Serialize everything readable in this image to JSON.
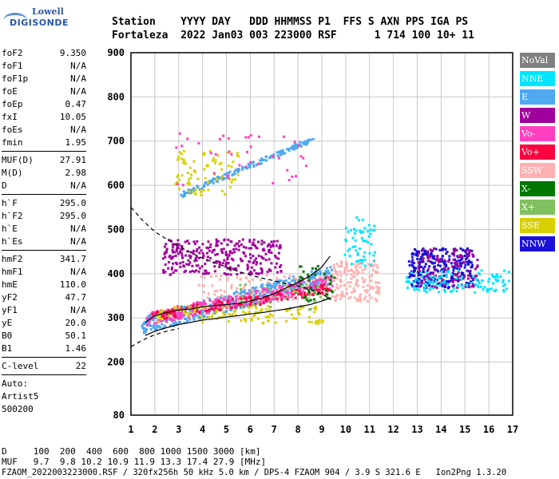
{
  "logo": {
    "line1": "Lowell",
    "line2": "DIGISONDE"
  },
  "header": {
    "line1": "Station    YYYY DAY   DDD HHMMSS P1  FFS S AXN PPS IGA PS",
    "line2": "Fortaleza  2022 Jan03 003 223000 RSF      1 714 100 10+ 11"
  },
  "params": {
    "group1": [
      {
        "k": "foF2",
        "v": "9.350"
      },
      {
        "k": "foF1",
        "v": "N/A"
      },
      {
        "k": "foF1p",
        "v": "N/A"
      },
      {
        "k": "foE",
        "v": "N/A"
      },
      {
        "k": "foEp",
        "v": "0.47"
      },
      {
        "k": "fxI",
        "v": "10.05"
      },
      {
        "k": "foEs",
        "v": "N/A"
      },
      {
        "k": "fmin",
        "v": "1.95"
      }
    ],
    "group2": [
      {
        "k": "MUF(D)",
        "v": "27.91"
      },
      {
        "k": "M(D)",
        "v": "2.98"
      },
      {
        "k": "D",
        "v": "N/A"
      }
    ],
    "group3": [
      {
        "k": "h`F",
        "v": "295.0"
      },
      {
        "k": "h`F2",
        "v": "295.0"
      },
      {
        "k": "h`E",
        "v": "N/A"
      },
      {
        "k": "h`Es",
        "v": "N/A"
      }
    ],
    "group4": [
      {
        "k": "hmF2",
        "v": "341.7"
      },
      {
        "k": "hmF1",
        "v": "N/A"
      },
      {
        "k": "hmE",
        "v": "110.0"
      },
      {
        "k": "yF2",
        "v": "47.7"
      },
      {
        "k": "yF1",
        "v": "N/A"
      },
      {
        "k": "yE",
        "v": "20.0"
      },
      {
        "k": "B0",
        "v": "50.1"
      },
      {
        "k": "B1",
        "v": "1.46"
      }
    ],
    "clevel": {
      "k": "C-level",
      "v": "22"
    },
    "auto": [
      "Auto:",
      "Artist5",
      "500200"
    ]
  },
  "legend": [
    {
      "label": "NoVal",
      "color": "#808080"
    },
    {
      "label": "NNE",
      "color": "#00e5ff"
    },
    {
      "label": "E",
      "color": "#4fa8f0"
    },
    {
      "label": "W",
      "color": "#a0009c"
    },
    {
      "label": "Vo-",
      "color": "#ff40c0"
    },
    {
      "label": "Vo+",
      "color": "#ff0040"
    },
    {
      "label": "SSW",
      "color": "#ffb0b0"
    },
    {
      "label": "X-",
      "color": "#007800"
    },
    {
      "label": "X+",
      "color": "#80c060"
    },
    {
      "label": "SSE",
      "color": "#d8d000"
    },
    {
      "label": "NNW",
      "color": "#1a10d8"
    }
  ],
  "footer": {
    "line1": "D     100  200  400  600  800 1000 1500 3000 [km]",
    "line2": "MUF   9.7  9.8 10.2 10.9 11.9 13.3 17.4 27.9 [MHz]",
    "line3": "FZAOM_2022003223000.RSF / 320fx256h 50 kHz 5.0 km / DPS-4 FZAOM 904 / 3.9 S 321.6 E   Ion2Png 1.3.20"
  },
  "chart_data": {
    "type": "scatter",
    "xlim": [
      1,
      17
    ],
    "ylim": [
      80,
      900
    ],
    "xticks": [
      1,
      2,
      3,
      4,
      5,
      6,
      7,
      8,
      9,
      10,
      11,
      12,
      13,
      14,
      15,
      16,
      17
    ],
    "yticks": [
      80,
      200,
      300,
      400,
      500,
      600,
      700,
      800,
      900
    ],
    "grid": true,
    "legend_position": "right",
    "series": [
      {
        "name": "trace-O",
        "color": "#000000",
        "x": [
          1.6,
          2.0,
          2.5,
          3.0,
          3.5,
          4.0,
          4.5,
          5.0,
          5.5,
          6.0,
          6.5,
          7.0,
          7.5,
          8.0,
          8.5,
          9.0,
          9.35
        ],
        "y": [
          290,
          305,
          312,
          318,
          320,
          325,
          328,
          330,
          333,
          338,
          345,
          355,
          368,
          380,
          395,
          415,
          440
        ]
      },
      {
        "name": "profile-upper",
        "color": "#000000",
        "dash": true,
        "x": [
          1.0,
          1.5,
          2.0,
          2.5,
          3.0,
          3.5,
          4.0,
          4.5,
          5.0,
          5.5,
          6.0,
          6.5,
          7.0,
          7.5,
          8.0,
          8.5,
          9.0,
          9.35
        ],
        "y": [
          550,
          520,
          495,
          478,
          462,
          448,
          435,
          425,
          415,
          405,
          397,
          390,
          384,
          378,
          372,
          365,
          355,
          342
        ]
      },
      {
        "name": "profile-lower",
        "color": "#000000",
        "dash": true,
        "x": [
          1.0,
          1.5,
          2.0,
          2.5,
          3.0
        ],
        "y": [
          235,
          250,
          262,
          270,
          276
        ]
      },
      {
        "name": "profile-solid",
        "color": "#000000",
        "x": [
          1.6,
          2.0,
          2.5,
          3.0,
          3.5,
          4.0,
          4.5,
          5.0,
          5.5,
          6.0,
          6.5,
          7.0,
          7.5,
          8.0,
          8.5,
          9.0,
          9.35
        ],
        "y": [
          260,
          270,
          278,
          285,
          290,
          295,
          298,
          302,
          305,
          309,
          312,
          316,
          320,
          325,
          330,
          338,
          345
        ]
      }
    ],
    "clusters": [
      {
        "color": "#4fa8f0",
        "x0": 1.4,
        "x1": 9.4,
        "y0": 285,
        "y1": 420,
        "n": 500,
        "slope": true
      },
      {
        "color": "#ff40c0",
        "x0": 1.6,
        "x1": 9.4,
        "y0": 300,
        "y1": 400,
        "n": 350,
        "slope": true
      },
      {
        "color": "#a0009c",
        "x0": 2.3,
        "x1": 7.3,
        "y0": 400,
        "y1": 480,
        "n": 300
      },
      {
        "color": "#ff0040",
        "x0": 1.8,
        "x1": 9.3,
        "y0": 305,
        "y1": 380,
        "n": 150,
        "slope": true
      },
      {
        "color": "#d8d000",
        "x0": 2.0,
        "x1": 9.0,
        "y0": 290,
        "y1": 330,
        "n": 120
      },
      {
        "color": "#ffb0b0",
        "x0": 9.4,
        "x1": 11.4,
        "y0": 340,
        "y1": 430,
        "n": 150
      },
      {
        "color": "#ffb0b0",
        "x0": 3.6,
        "x1": 9.4,
        "y0": 340,
        "y1": 400,
        "n": 80
      },
      {
        "color": "#1a10d8",
        "x0": 12.6,
        "x1": 15.3,
        "y0": 370,
        "y1": 460,
        "n": 280
      },
      {
        "color": "#a0009c",
        "x0": 13.0,
        "x1": 15.5,
        "y0": 370,
        "y1": 460,
        "n": 120
      },
      {
        "color": "#00e5ff",
        "x0": 12.5,
        "x1": 16.8,
        "y0": 360,
        "y1": 410,
        "n": 120
      },
      {
        "color": "#4fa8f0",
        "x0": 3.0,
        "x1": 8.6,
        "y0": 580,
        "y1": 730,
        "n": 160,
        "slope": true,
        "band": true
      },
      {
        "color": "#d8d000",
        "x0": 2.8,
        "x1": 5.5,
        "y0": 580,
        "y1": 680,
        "n": 80
      },
      {
        "color": "#ff40c0",
        "x0": 2.8,
        "x1": 8.5,
        "y0": 600,
        "y1": 720,
        "n": 40
      },
      {
        "color": "#00e5ff",
        "x0": 9.9,
        "x1": 11.2,
        "y0": 420,
        "y1": 530,
        "n": 60
      },
      {
        "color": "#007800",
        "x0": 8.0,
        "x1": 9.5,
        "y0": 340,
        "y1": 420,
        "n": 40
      },
      {
        "color": "#80c060",
        "x0": 5.5,
        "x1": 9.3,
        "y0": 320,
        "y1": 380,
        "n": 40
      }
    ]
  }
}
